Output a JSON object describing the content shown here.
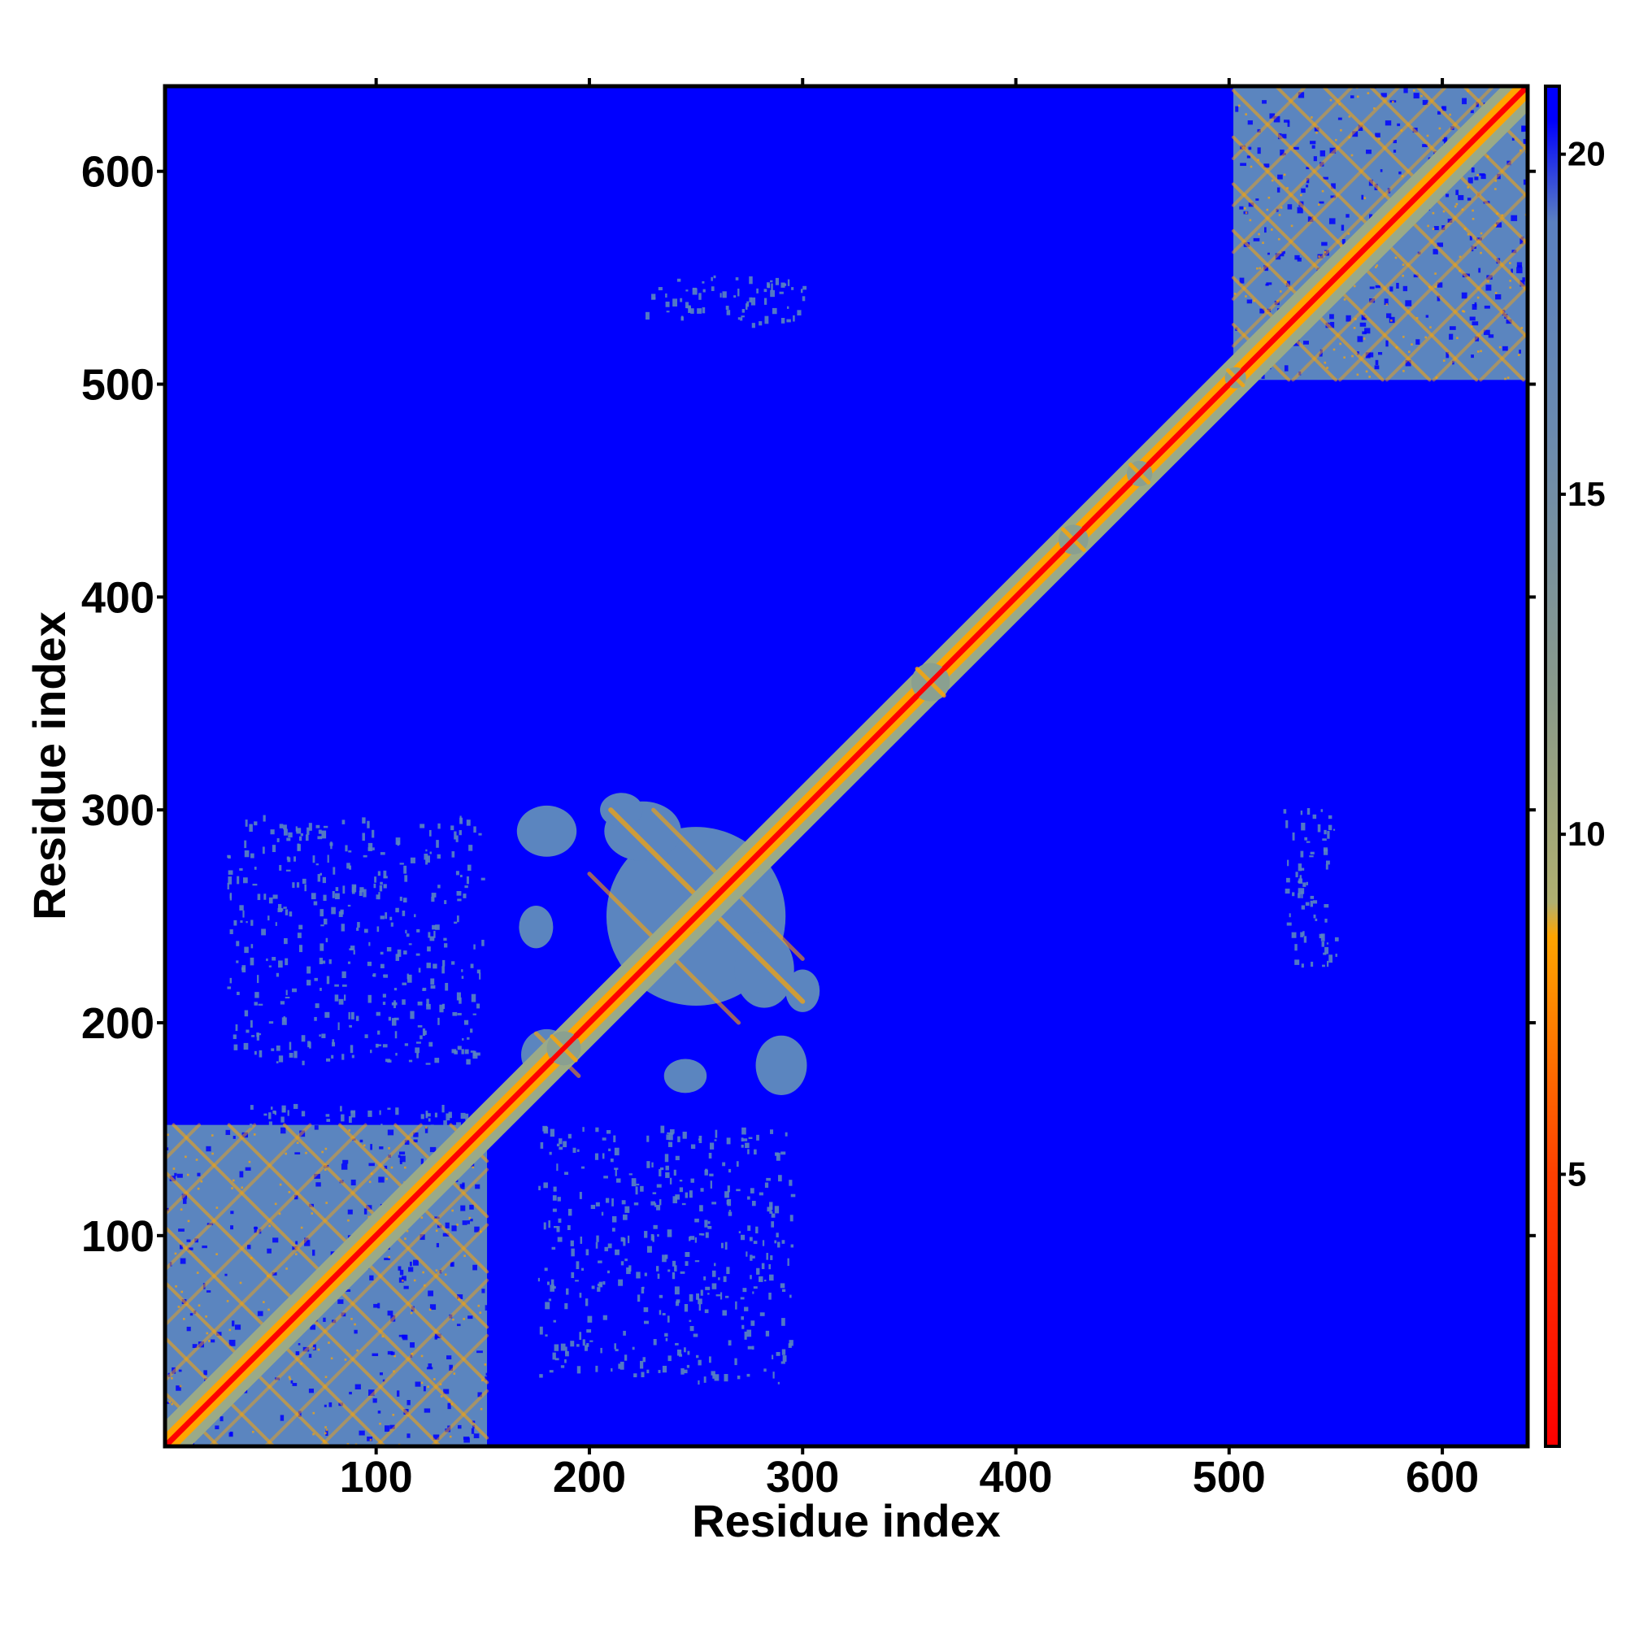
{
  "chart_data": {
    "type": "heatmap",
    "xlabel": "Residue index",
    "ylabel": "Residue index",
    "xlim": [
      1,
      640
    ],
    "ylim": [
      1,
      640
    ],
    "x_ticks": [
      100,
      200,
      300,
      400,
      500,
      600
    ],
    "y_ticks": [
      100,
      200,
      300,
      400,
      500,
      600
    ],
    "colorbar": {
      "range": [
        1,
        21
      ],
      "ticks": [
        5,
        10,
        15,
        20
      ],
      "stops": [
        {
          "value": 1,
          "color": "#ff0000"
        },
        {
          "value": 5,
          "color": "#ff4000"
        },
        {
          "value": 8.5,
          "color": "#ffa500"
        },
        {
          "value": 9,
          "color": "#b0b070"
        },
        {
          "value": 12,
          "color": "#8a9a8a"
        },
        {
          "value": 16,
          "color": "#6a8ab0"
        },
        {
          "value": 19,
          "color": "#5a80c0"
        },
        {
          "value": 20.5,
          "color": "#0000ff"
        },
        {
          "value": 21,
          "color": "#0000ff"
        }
      ]
    },
    "background_value": 21,
    "domains": [
      {
        "from": 1,
        "to": 152
      },
      {
        "from": 502,
        "to": 640
      }
    ],
    "diagonal_band_width": 6
  },
  "colors": {
    "far": "#0000ff",
    "mid": "#5b85bf",
    "near": "#ffa500",
    "contact": "#ff0000"
  }
}
